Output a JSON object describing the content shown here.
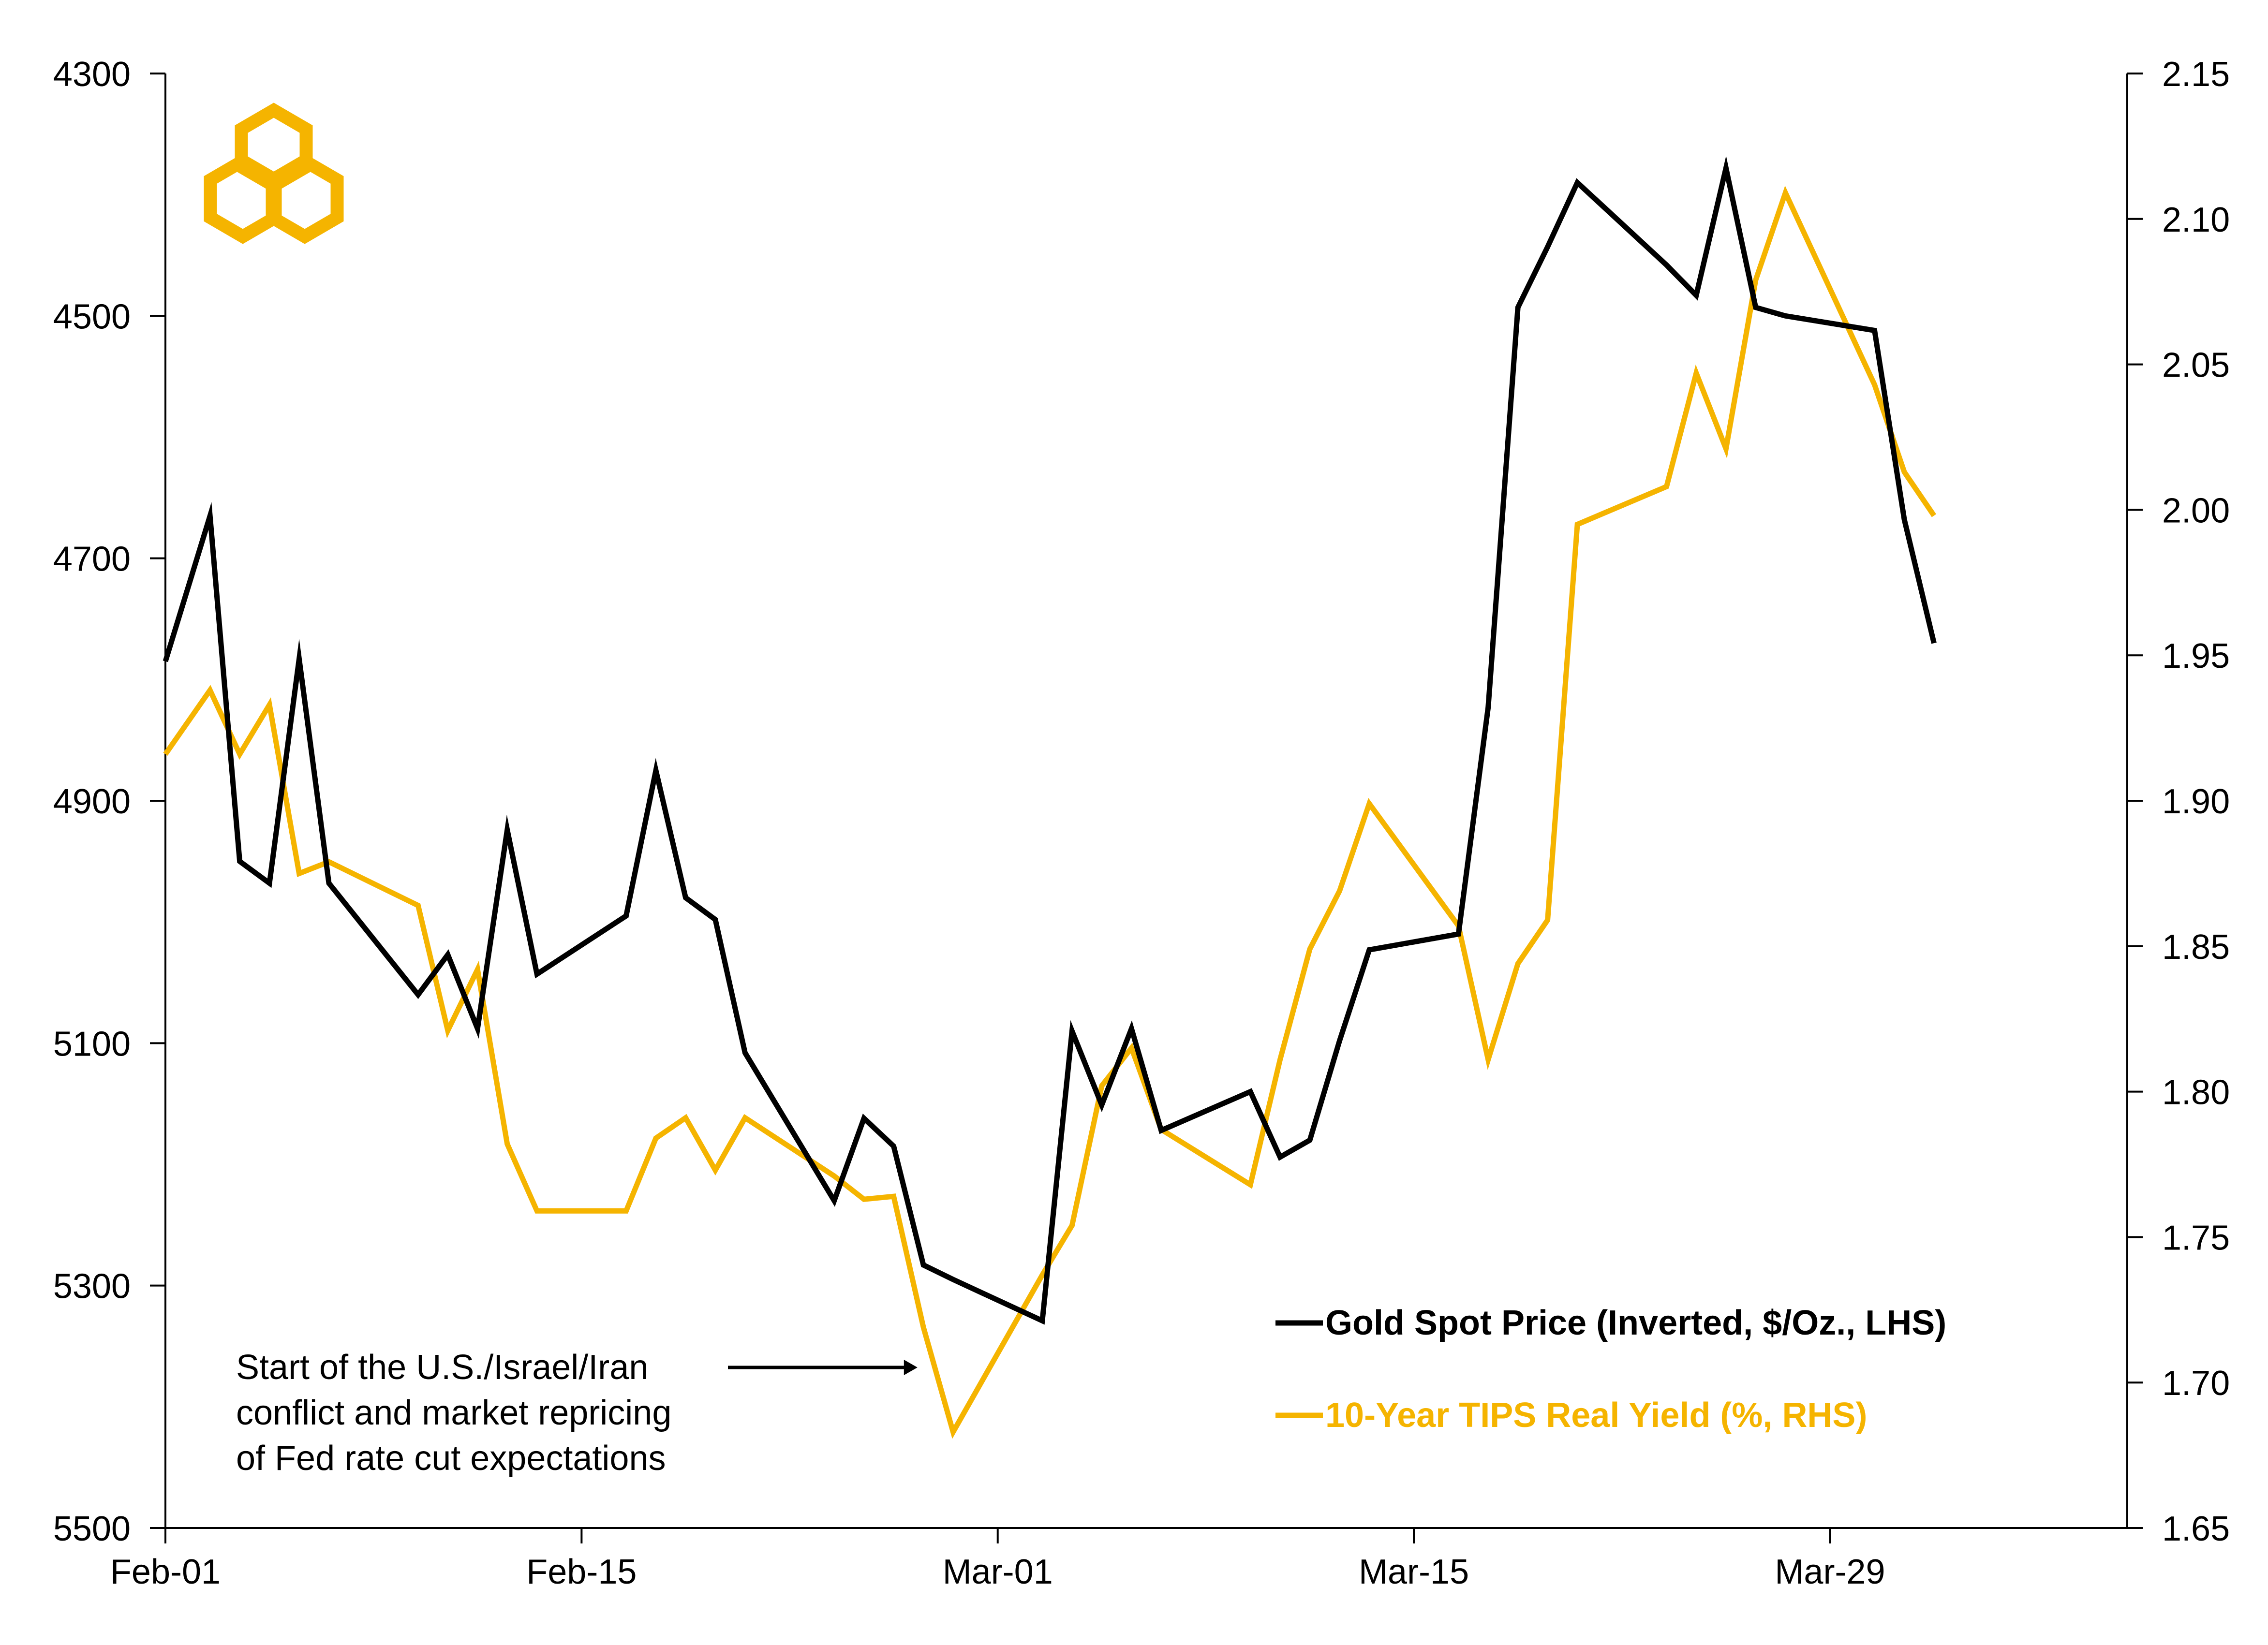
{
  "chart_data": {
    "type": "line",
    "title": "",
    "xlabel": "",
    "ylabel": "",
    "x_ticks": [
      "Feb-01",
      "Feb-15",
      "Mar-01",
      "Mar-15",
      "Mar-29"
    ],
    "x_tick_days": [
      0,
      14,
      28,
      42,
      56
    ],
    "xlim_days": [
      0,
      66
    ],
    "y_left": {
      "ticks": [
        "4300",
        "4500",
        "4700",
        "4900",
        "5100",
        "5300",
        "5500"
      ],
      "range": [
        4300,
        5500
      ],
      "inverted": true
    },
    "y_right": {
      "ticks": [
        "2.15",
        "2.10",
        "2.05",
        "2.00",
        "1.95",
        "1.90",
        "1.85",
        "1.80",
        "1.75",
        "1.70",
        "1.65"
      ],
      "range": [
        1.65,
        2.15
      ],
      "inverted": false
    },
    "grid": false,
    "legend": {
      "placement": "bottom-right"
    },
    "annotation": {
      "lines": [
        "Start of the U.S./Israel/Iran",
        "conflict and market repricing",
        "of Fed rate cut expectations"
      ],
      "arrow_points_to_day": 25.3
    },
    "series": [
      {
        "name": "Gold Spot Price (Inverted, $/Oz., LHS)",
        "axis": "left",
        "color": "#000000",
        "x": [
          0,
          1.5,
          2.5,
          3.5,
          4.5,
          5.5,
          8.5,
          9.5,
          10.5,
          11.5,
          12.5,
          15.5,
          16.5,
          17.5,
          18.5,
          19.5,
          22.5,
          23.5,
          24.5,
          25.5,
          26.5,
          29.5,
          30.5,
          31.5,
          32.5,
          33.5,
          36.5,
          37.5,
          38.5,
          39.5,
          40.5,
          43.5,
          44.5,
          45.5,
          46.5,
          47.5,
          50.5,
          51.5,
          52.5,
          53.5,
          54.5,
          57.5,
          58.5,
          59.5
        ],
        "y": [
          4785,
          4665,
          4950,
          4968,
          4783,
          4968,
          5060,
          5027,
          5088,
          4924,
          5043,
          4995,
          4875,
          4980,
          4998,
          5108,
          5230,
          5162,
          5185,
          5283,
          5295,
          5329,
          5090,
          5151,
          5088,
          5172,
          5140,
          5194,
          5180,
          5098,
          5023,
          5010,
          4823,
          4493,
          4443,
          4390,
          4458,
          4483,
          4378,
          4493,
          4500,
          4512,
          4668,
          4770
        ]
      },
      {
        "name": "10-Year TIPS Real Yield (%, RHS)",
        "axis": "right",
        "color": "#F5B400",
        "x": [
          0,
          1.5,
          2.5,
          3.5,
          4.5,
          5.5,
          8.5,
          9.5,
          10.5,
          11.5,
          12.5,
          15.5,
          16.5,
          17.5,
          18.5,
          19.5,
          22.5,
          23.5,
          24.5,
          25.5,
          26.5,
          29.5,
          30.5,
          31.5,
          32.5,
          33.5,
          36.5,
          37.5,
          38.5,
          39.5,
          40.5,
          43.5,
          44.5,
          45.5,
          46.5,
          47.5,
          50.5,
          51.5,
          52.5,
          53.5,
          54.5,
          57.5,
          58.5,
          59.5
        ],
        "y": [
          1.916,
          1.938,
          1.916,
          1.933,
          1.875,
          1.879,
          1.864,
          1.821,
          1.842,
          1.782,
          1.759,
          1.759,
          1.784,
          1.791,
          1.773,
          1.791,
          1.771,
          1.763,
          1.764,
          1.719,
          1.683,
          1.737,
          1.754,
          1.802,
          1.815,
          1.787,
          1.768,
          1.811,
          1.849,
          1.869,
          1.899,
          1.857,
          1.811,
          1.844,
          1.859,
          1.995,
          2.008,
          2.047,
          2.021,
          2.079,
          2.109,
          2.043,
          2.013,
          1.998
        ]
      }
    ]
  }
}
